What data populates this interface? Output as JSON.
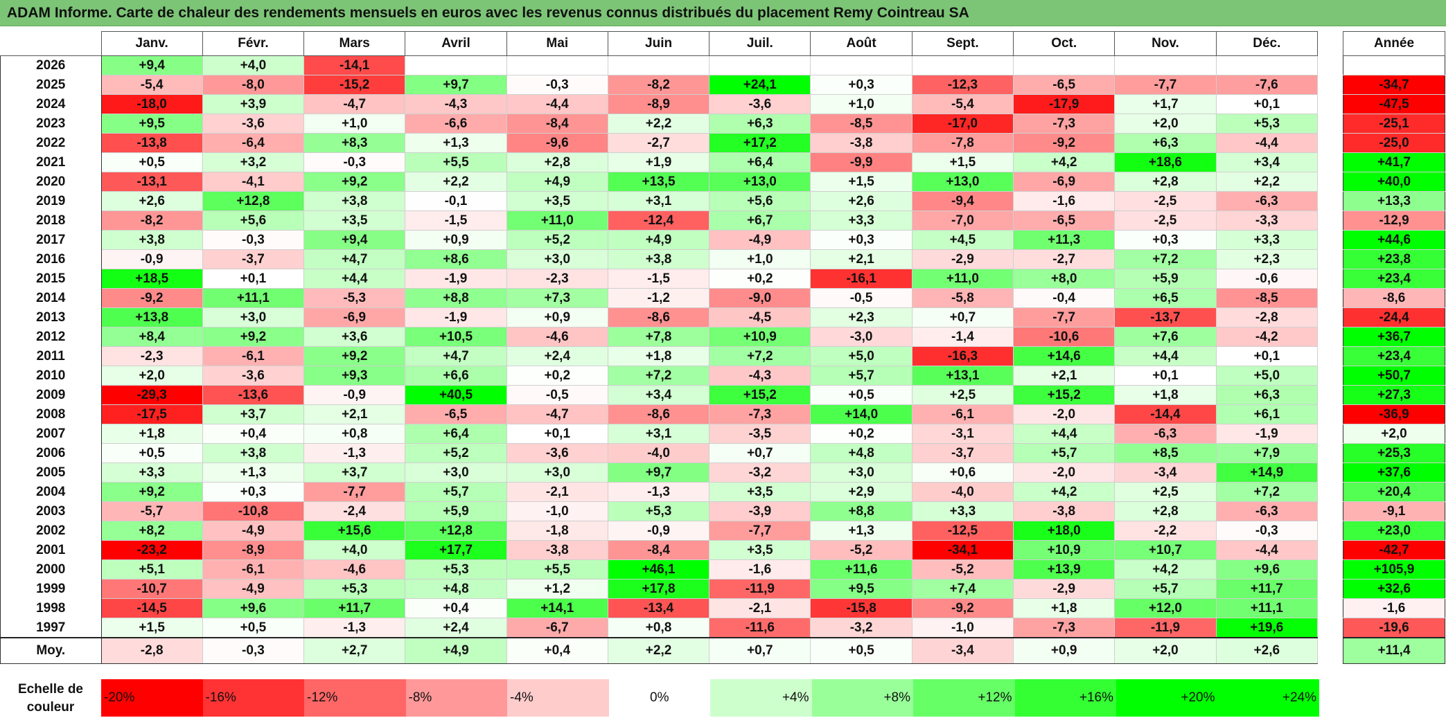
{
  "title": "ADAM Informe. Carte de chaleur des rendements mensuels en euros avec les revenus connus distribués du placement Remy Cointreau SA",
  "chart_data": {
    "type": "heatmap",
    "columns": [
      "Janv.",
      "Févr.",
      "Mars",
      "Avril",
      "Mai",
      "Juin",
      "Juil.",
      "Août",
      "Sept.",
      "Oct.",
      "Nov.",
      "Déc."
    ],
    "annual_header": "Année",
    "rows": [
      {
        "year": "2026",
        "values": [
          "+9,4",
          "+4,0",
          "-14,1",
          "",
          "",
          "",
          "",
          "",
          "",
          "",
          "",
          ""
        ],
        "annual": ""
      },
      {
        "year": "2025",
        "values": [
          "-5,4",
          "-8,0",
          "-15,2",
          "+9,7",
          "-0,3",
          "-8,2",
          "+24,1",
          "+0,3",
          "-12,3",
          "-6,5",
          "-7,7",
          "-7,6"
        ],
        "annual": "-34,7"
      },
      {
        "year": "2024",
        "values": [
          "-18,0",
          "+3,9",
          "-4,7",
          "-4,3",
          "-4,4",
          "-8,9",
          "-3,6",
          "+1,0",
          "-5,4",
          "-17,9",
          "+1,7",
          "+0,1"
        ],
        "annual": "-47,5"
      },
      {
        "year": "2023",
        "values": [
          "+9,5",
          "-3,6",
          "+1,0",
          "-6,6",
          "-8,4",
          "+2,2",
          "+6,3",
          "-8,5",
          "-17,0",
          "-7,3",
          "+2,0",
          "+5,3"
        ],
        "annual": "-25,1"
      },
      {
        "year": "2022",
        "values": [
          "-13,8",
          "-6,4",
          "+8,3",
          "+1,3",
          "-9,6",
          "-2,7",
          "+17,2",
          "-3,8",
          "-7,8",
          "-9,2",
          "+6,3",
          "-4,4"
        ],
        "annual": "-25,0"
      },
      {
        "year": "2021",
        "values": [
          "+0,5",
          "+3,2",
          "-0,3",
          "+5,5",
          "+2,8",
          "+1,9",
          "+6,4",
          "-9,9",
          "+1,5",
          "+4,2",
          "+18,6",
          "+3,4"
        ],
        "annual": "+41,7"
      },
      {
        "year": "2020",
        "values": [
          "-13,1",
          "-4,1",
          "+9,2",
          "+2,2",
          "+4,9",
          "+13,5",
          "+13,0",
          "+1,5",
          "+13,0",
          "-6,9",
          "+2,8",
          "+2,2"
        ],
        "annual": "+40,0"
      },
      {
        "year": "2019",
        "values": [
          "+2,6",
          "+12,8",
          "+3,8",
          "-0,1",
          "+3,5",
          "+3,1",
          "+5,6",
          "+2,6",
          "-9,4",
          "-1,6",
          "-2,5",
          "-6,3"
        ],
        "annual": "+13,3"
      },
      {
        "year": "2018",
        "values": [
          "-8,2",
          "+5,6",
          "+3,5",
          "-1,5",
          "+11,0",
          "-12,4",
          "+6,7",
          "+3,3",
          "-7,0",
          "-6,5",
          "-2,5",
          "-3,3"
        ],
        "annual": "-12,9"
      },
      {
        "year": "2017",
        "values": [
          "+3,8",
          "-0,3",
          "+9,4",
          "+0,9",
          "+5,2",
          "+4,9",
          "-4,9",
          "+0,3",
          "+4,5",
          "+11,3",
          "+0,3",
          "+3,3"
        ],
        "annual": "+44,6"
      },
      {
        "year": "2016",
        "values": [
          "-0,9",
          "-3,7",
          "+4,7",
          "+8,6",
          "+3,0",
          "+3,8",
          "+1,0",
          "+2,1",
          "-2,9",
          "-2,7",
          "+7,2",
          "+2,3"
        ],
        "annual": "+23,8"
      },
      {
        "year": "2015",
        "values": [
          "+18,5",
          "+0,1",
          "+4,4",
          "-1,9",
          "-2,3",
          "-1,5",
          "+0,2",
          "-16,1",
          "+11,0",
          "+8,0",
          "+5,9",
          "-0,6"
        ],
        "annual": "+23,4"
      },
      {
        "year": "2014",
        "values": [
          "-9,2",
          "+11,1",
          "-5,3",
          "+8,8",
          "+7,3",
          "-1,2",
          "-9,0",
          "-0,5",
          "-5,8",
          "-0,4",
          "+6,5",
          "-8,5"
        ],
        "annual": "-8,6"
      },
      {
        "year": "2013",
        "values": [
          "+13,8",
          "+3,0",
          "-6,9",
          "-1,9",
          "+0,9",
          "-8,6",
          "-4,5",
          "+2,3",
          "+0,7",
          "-7,7",
          "-13,7",
          "-2,8"
        ],
        "annual": "-24,4"
      },
      {
        "year": "2012",
        "values": [
          "+8,4",
          "+9,2",
          "+3,6",
          "+10,5",
          "-4,6",
          "+7,8",
          "+10,9",
          "-3,0",
          "-1,4",
          "-10,6",
          "+7,6",
          "-4,2"
        ],
        "annual": "+36,7"
      },
      {
        "year": "2011",
        "values": [
          "-2,3",
          "-6,1",
          "+9,2",
          "+4,7",
          "+2,4",
          "+1,8",
          "+7,2",
          "+5,0",
          "-16,3",
          "+14,6",
          "+4,4",
          "+0,1"
        ],
        "annual": "+23,4"
      },
      {
        "year": "2010",
        "values": [
          "+2,0",
          "-3,6",
          "+9,3",
          "+6,6",
          "+0,2",
          "+7,2",
          "-4,3",
          "+5,7",
          "+13,1",
          "+2,1",
          "+0,1",
          "+5,0"
        ],
        "annual": "+50,7"
      },
      {
        "year": "2009",
        "values": [
          "-29,3",
          "-13,6",
          "-0,9",
          "+40,5",
          "-0,5",
          "+3,4",
          "+15,2",
          "+0,5",
          "+2,5",
          "+15,2",
          "+1,8",
          "+6,3"
        ],
        "annual": "+27,3"
      },
      {
        "year": "2008",
        "values": [
          "-17,5",
          "+3,7",
          "+2,1",
          "-6,5",
          "-4,7",
          "-8,6",
          "-7,3",
          "+14,0",
          "-6,1",
          "-2,0",
          "-14,4",
          "+6,1"
        ],
        "annual": "-36,9"
      },
      {
        "year": "2007",
        "values": [
          "+1,8",
          "+0,4",
          "+0,8",
          "+6,4",
          "+0,1",
          "+3,1",
          "-3,5",
          "+0,2",
          "-3,1",
          "+4,4",
          "-6,3",
          "-1,9"
        ],
        "annual": "+2,0"
      },
      {
        "year": "2006",
        "values": [
          "+0,5",
          "+3,8",
          "-1,3",
          "+5,2",
          "-3,6",
          "-4,0",
          "+0,7",
          "+4,8",
          "-3,7",
          "+5,7",
          "+8,5",
          "+7,9"
        ],
        "annual": "+25,3"
      },
      {
        "year": "2005",
        "values": [
          "+3,3",
          "+1,3",
          "+3,7",
          "+3,0",
          "+3,0",
          "+9,7",
          "-3,2",
          "+3,0",
          "+0,6",
          "-2,0",
          "-3,4",
          "+14,9"
        ],
        "annual": "+37,6"
      },
      {
        "year": "2004",
        "values": [
          "+9,2",
          "+0,3",
          "-7,7",
          "+5,7",
          "-2,1",
          "-1,3",
          "+3,5",
          "+2,9",
          "-4,0",
          "+4,2",
          "+2,5",
          "+7,2"
        ],
        "annual": "+20,4"
      },
      {
        "year": "2003",
        "values": [
          "-5,7",
          "-10,8",
          "-2,4",
          "+5,9",
          "-1,0",
          "+5,3",
          "-3,9",
          "+8,8",
          "+3,3",
          "-3,8",
          "+2,8",
          "-6,3"
        ],
        "annual": "-9,1"
      },
      {
        "year": "2002",
        "values": [
          "+8,2",
          "-4,9",
          "+15,6",
          "+12,8",
          "-1,8",
          "-0,9",
          "-7,7",
          "+1,3",
          "-12,5",
          "+18,0",
          "-2,2",
          "-0,3"
        ],
        "annual": "+23,0"
      },
      {
        "year": "2001",
        "values": [
          "-23,2",
          "-8,9",
          "+4,0",
          "+17,7",
          "-3,8",
          "-8,4",
          "+3,5",
          "-5,2",
          "-34,1",
          "+10,9",
          "+10,7",
          "-4,4"
        ],
        "annual": "-42,7"
      },
      {
        "year": "2000",
        "values": [
          "+5,1",
          "-6,1",
          "-4,6",
          "+5,3",
          "+5,5",
          "+46,1",
          "-1,6",
          "+11,6",
          "-5,2",
          "+13,9",
          "+4,2",
          "+9,6"
        ],
        "annual": "+105,9"
      },
      {
        "year": "1999",
        "values": [
          "-10,7",
          "-4,9",
          "+5,3",
          "+4,8",
          "+1,2",
          "+17,8",
          "-11,9",
          "+9,5",
          "+7,4",
          "-2,9",
          "+5,7",
          "+11,7"
        ],
        "annual": "+32,6"
      },
      {
        "year": "1998",
        "values": [
          "-14,5",
          "+9,6",
          "+11,7",
          "+0,4",
          "+14,1",
          "-13,4",
          "-2,1",
          "-15,8",
          "-9,2",
          "+1,8",
          "+12,0",
          "+11,1"
        ],
        "annual": "-1,6"
      },
      {
        "year": "1997",
        "values": [
          "+1,5",
          "+0,5",
          "-1,3",
          "+2,4",
          "-6,7",
          "+0,8",
          "-11,6",
          "-3,2",
          "-1,0",
          "-7,3",
          "-11,9",
          "+19,6"
        ],
        "annual": "-19,6"
      }
    ],
    "average": {
      "label": "Moy.",
      "values": [
        "-2,8",
        "-0,3",
        "+2,7",
        "+4,9",
        "+0,4",
        "+2,2",
        "+0,7",
        "+0,5",
        "-3,4",
        "+0,9",
        "+2,0",
        "+2,6"
      ],
      "annual": "+11,4"
    },
    "scale": {
      "label_line1": "Echelle de",
      "label_line2": "couleur",
      "steps": [
        {
          "label": "-20%",
          "value": -20,
          "align": "left"
        },
        {
          "label": "-16%",
          "value": -16,
          "align": "left"
        },
        {
          "label": "-12%",
          "value": -12,
          "align": "left"
        },
        {
          "label": "-8%",
          "value": -8,
          "align": "left"
        },
        {
          "label": "-4%",
          "value": -4,
          "align": "left"
        },
        {
          "label": "0%",
          "value": 0,
          "align": "center"
        },
        {
          "label": "+4%",
          "value": 4,
          "align": "right"
        },
        {
          "label": "+8%",
          "value": 8,
          "align": "right"
        },
        {
          "label": "+12%",
          "value": 12,
          "align": "right"
        },
        {
          "label": "+16%",
          "value": 16,
          "align": "right"
        },
        {
          "label": "+20%",
          "value": 20,
          "align": "right"
        },
        {
          "label": "+24%",
          "value": 24,
          "align": "right"
        }
      ]
    },
    "colors": {
      "negative_max": "#ff0000",
      "positive_max": "#00ff00",
      "neutral": "#ffffff",
      "title_bg": "#7cc576"
    }
  }
}
